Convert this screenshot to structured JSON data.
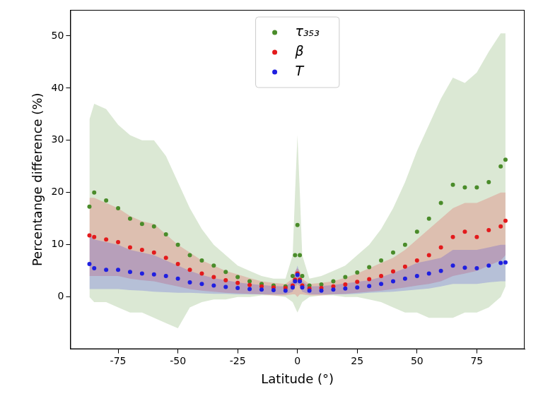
{
  "chart_data": {
    "type": "scatter",
    "x_label": "Latitude (°)",
    "y_label": "Percentange difference (%)",
    "xlim": [
      -95,
      95
    ],
    "xticks": [
      -75,
      -50,
      -25,
      0,
      25,
      50,
      75
    ],
    "ylim": [
      -10,
      55
    ],
    "yticks": [
      0,
      10,
      20,
      30,
      40,
      50
    ],
    "grid": false,
    "legend": "upper center",
    "marker": "o",
    "x": [
      -87,
      -85,
      -80,
      -75,
      -70,
      -65,
      -60,
      -55,
      -50,
      -45,
      -40,
      -35,
      -30,
      -25,
      -20,
      -15,
      -10,
      -5,
      -2,
      -1,
      0,
      1,
      2,
      5,
      10,
      15,
      20,
      25,
      30,
      35,
      40,
      45,
      50,
      55,
      60,
      65,
      70,
      75,
      80,
      85,
      87
    ],
    "series": [
      {
        "name": "τ₃₅₃",
        "color": "#4a8c2a",
        "values": [
          17.3,
          20,
          18.5,
          17,
          15,
          14,
          13.5,
          12,
          10,
          8,
          7,
          6,
          4.8,
          3.8,
          3,
          2.5,
          2.2,
          2,
          4,
          8,
          13.8,
          8,
          4,
          2.2,
          2.4,
          3,
          3.8,
          4.7,
          5.7,
          7,
          8.5,
          10,
          12.5,
          15,
          18,
          21.5,
          21,
          21,
          22,
          25,
          26.3
        ],
        "lower": [
          0,
          -1,
          -1,
          -2,
          -3,
          -3,
          -4,
          -5,
          -6,
          -2,
          -1,
          -0.5,
          -0.5,
          0,
          0,
          0.3,
          0.3,
          0,
          -1,
          -2,
          -3,
          -2,
          -1,
          0,
          0.3,
          0.3,
          0,
          0,
          -0.5,
          -1,
          -2,
          -3,
          -3,
          -4,
          -4,
          -4,
          -3,
          -3,
          -2,
          0,
          2
        ],
        "upper": [
          34,
          37,
          36,
          33,
          31,
          30,
          30,
          27,
          22,
          17,
          13,
          10,
          8,
          6,
          5,
          4,
          3.5,
          3.5,
          8,
          20,
          31,
          20,
          8,
          3.5,
          4,
          5,
          6,
          8,
          10,
          13,
          17,
          22,
          28,
          33,
          38,
          42,
          41,
          43,
          47,
          50.5,
          50.5
        ]
      },
      {
        "name": "β",
        "color": "#e31a1c",
        "values": [
          11.8,
          11.5,
          11,
          10.5,
          9.5,
          9,
          8.5,
          7.5,
          6.3,
          5.2,
          4.5,
          3.8,
          3.2,
          2.7,
          2.3,
          2,
          1.8,
          1.7,
          2.2,
          3.3,
          4.5,
          3.3,
          2.2,
          1.6,
          1.7,
          2,
          2.4,
          2.9,
          3.4,
          4,
          4.9,
          5.8,
          7,
          8,
          9.5,
          11.5,
          12.5,
          11.5,
          12.8,
          13.5,
          14.6
        ],
        "lower": [
          4,
          4,
          4,
          4,
          3.5,
          3.2,
          3,
          2.5,
          2,
          1.5,
          1.2,
          1,
          0.8,
          0.7,
          0.6,
          0.5,
          0.3,
          0.3,
          0.5,
          0.5,
          0,
          0.5,
          0.5,
          0.3,
          0.3,
          0.5,
          0.6,
          0.8,
          1,
          1.2,
          1.5,
          1.8,
          2.2,
          2.5,
          3,
          4,
          4.5,
          5,
          6,
          7,
          8
        ],
        "upper": [
          19,
          19,
          18,
          17,
          15.5,
          14.5,
          14,
          12,
          10,
          8.5,
          7,
          6,
          5,
          4.3,
          3.6,
          3,
          2.7,
          2.5,
          3.5,
          5,
          5.5,
          5,
          3.5,
          2.5,
          2.7,
          3,
          3.7,
          4.5,
          5.5,
          6.5,
          7.5,
          9,
          11,
          13,
          15,
          17,
          18,
          18,
          19,
          20,
          20
        ]
      },
      {
        "name": "T",
        "color": "#1f1fe0",
        "values": [
          6.3,
          5.5,
          5.2,
          5.2,
          4.8,
          4.5,
          4.3,
          4,
          3.5,
          2.8,
          2.5,
          2.2,
          1.9,
          1.7,
          1.5,
          1.4,
          1.3,
          1.2,
          1.8,
          3,
          4.2,
          3,
          1.8,
          1.2,
          1.2,
          1.4,
          1.6,
          1.8,
          2.1,
          2.5,
          3,
          3.5,
          4,
          4.5,
          5,
          6,
          5.6,
          5.5,
          6,
          6.5,
          6.6
        ],
        "lower": [
          1.5,
          1.5,
          1.5,
          1.5,
          1.3,
          1.2,
          1,
          0.9,
          0.8,
          0.8,
          0.7,
          0.6,
          0.6,
          0.5,
          0.5,
          0.5,
          0.5,
          0.5,
          1,
          2,
          2.5,
          2,
          1,
          0.5,
          0.5,
          0.5,
          0.5,
          0.6,
          0.8,
          0.9,
          1,
          1.2,
          1.4,
          1.6,
          2,
          2.5,
          2.5,
          2.5,
          2.8,
          3,
          3
        ],
        "upper": [
          12,
          11,
          10.5,
          10,
          9,
          8.5,
          8,
          7,
          6,
          5,
          4.2,
          3.6,
          3.2,
          2.8,
          2.5,
          2.3,
          2.1,
          2,
          3,
          4.5,
          6,
          4.5,
          3,
          2,
          2.1,
          2.3,
          2.6,
          2.9,
          3.2,
          3.8,
          4.6,
          5.5,
          6.5,
          7,
          7.5,
          9,
          9,
          9,
          9.5,
          10,
          10
        ]
      }
    ]
  }
}
